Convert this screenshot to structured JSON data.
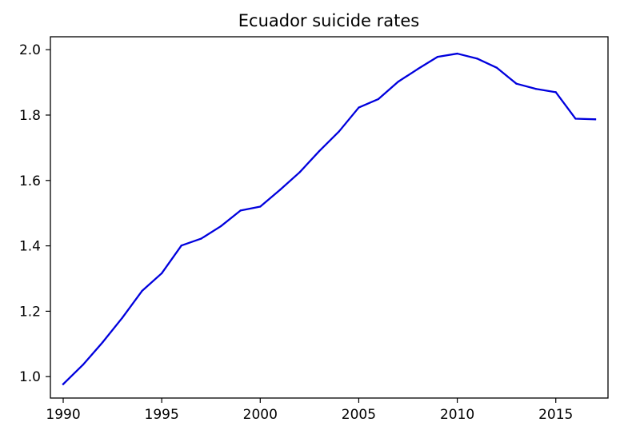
{
  "chart_data": {
    "type": "line",
    "title": "Ecuador suicide rates",
    "xlabel": "",
    "ylabel": "",
    "xlim": [
      1989.35,
      2017.65
    ],
    "ylim": [
      0.9345,
      2.0395
    ],
    "xticks": [
      1990,
      1995,
      2000,
      2005,
      2010,
      2015
    ],
    "yticks": [
      1.0,
      1.2,
      1.4,
      1.6,
      1.8,
      2.0
    ],
    "ytick_labels": [
      "1.0",
      "1.2",
      "1.4",
      "1.6",
      "1.8",
      "2.0"
    ],
    "grid": false,
    "legend": "none",
    "series": [
      {
        "color": "#0000dd",
        "x": [
          1990,
          1991,
          1992,
          1993,
          1994,
          1995,
          1996,
          1997,
          1998,
          1999,
          2000,
          2001,
          2002,
          2003,
          2004,
          2005,
          2006,
          2007,
          2008,
          2009,
          2010,
          2011,
          2012,
          2013,
          2014,
          2015,
          2016,
          2017
        ],
        "y": [
          0.977,
          1.036,
          1.105,
          1.18,
          1.262,
          1.316,
          1.401,
          1.422,
          1.46,
          1.508,
          1.52,
          1.571,
          1.625,
          1.69,
          1.75,
          1.823,
          1.849,
          1.902,
          1.941,
          1.978,
          1.988,
          1.973,
          1.945,
          1.896,
          1.88,
          1.87,
          1.789,
          1.787
        ]
      }
    ]
  }
}
